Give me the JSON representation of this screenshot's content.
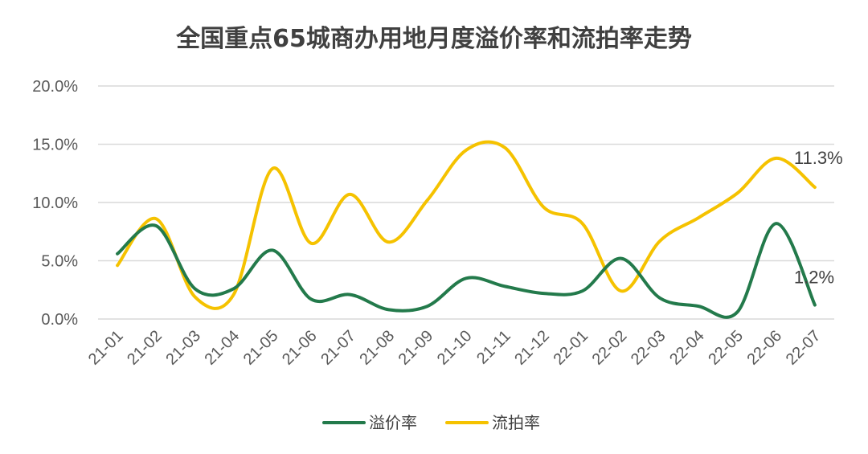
{
  "chart_data": {
    "type": "line",
    "title": "全国重点65城商办用地月度溢价率和流拍率走势",
    "categories": [
      "21-01",
      "21-02",
      "21-03",
      "21-04",
      "21-05",
      "21-06",
      "21-07",
      "21-08",
      "21-09",
      "21-10",
      "21-11",
      "21-12",
      "22-01",
      "22-02",
      "22-03",
      "22-04",
      "22-05",
      "22-06",
      "22-07"
    ],
    "ylim": [
      0,
      20
    ],
    "yticks": [
      0,
      5,
      10,
      15,
      20
    ],
    "ytick_labels": [
      "0.0%",
      "5.0%",
      "10.0%",
      "15.0%",
      "20.0%"
    ],
    "grid": true,
    "legend_position": "bottom",
    "series": [
      {
        "name": "溢价率",
        "color": "#237a4b",
        "values": [
          5.6,
          8.0,
          2.6,
          2.6,
          5.9,
          1.7,
          2.1,
          0.8,
          1.1,
          3.5,
          2.8,
          2.2,
          2.4,
          5.2,
          1.8,
          1.1,
          0.6,
          8.2,
          1.2
        ],
        "end_label": "1.2%"
      },
      {
        "name": "流拍率",
        "color": "#f5c200",
        "values": [
          4.6,
          8.6,
          1.9,
          2.1,
          12.9,
          6.5,
          10.7,
          6.6,
          10.2,
          14.5,
          14.7,
          9.6,
          8.2,
          2.4,
          6.7,
          8.7,
          10.8,
          13.8,
          11.3
        ],
        "end_label": "11.3%"
      }
    ]
  }
}
